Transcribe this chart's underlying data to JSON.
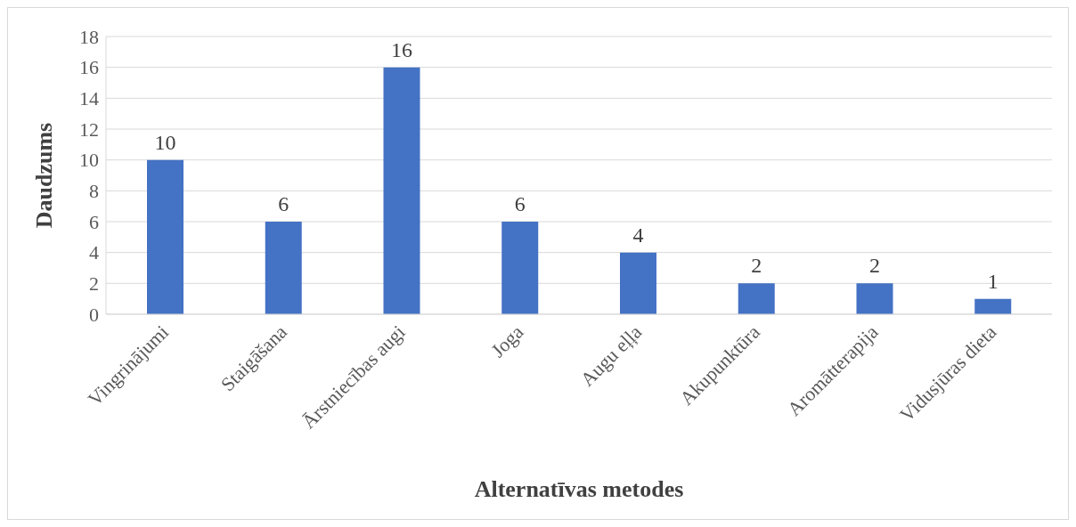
{
  "chart_data": {
    "type": "bar",
    "xlabel": "Alternatīvas metodes",
    "ylabel": "Daudzums",
    "categories": [
      "Vingrinājumi",
      "Staigāšana",
      "Ārstniecības augi",
      "Joga",
      "Augu eļļa",
      "Akupunktūra",
      "Aromātterapija",
      "Vidusjūras dieta"
    ],
    "values": [
      10,
      6,
      16,
      6,
      4,
      2,
      2,
      1
    ],
    "color": "#4472c4",
    "ylim": [
      0,
      18
    ],
    "yticks": [
      0,
      2,
      4,
      6,
      8,
      10,
      12,
      14,
      16,
      18
    ],
    "grid": "y",
    "data_labels": true
  }
}
